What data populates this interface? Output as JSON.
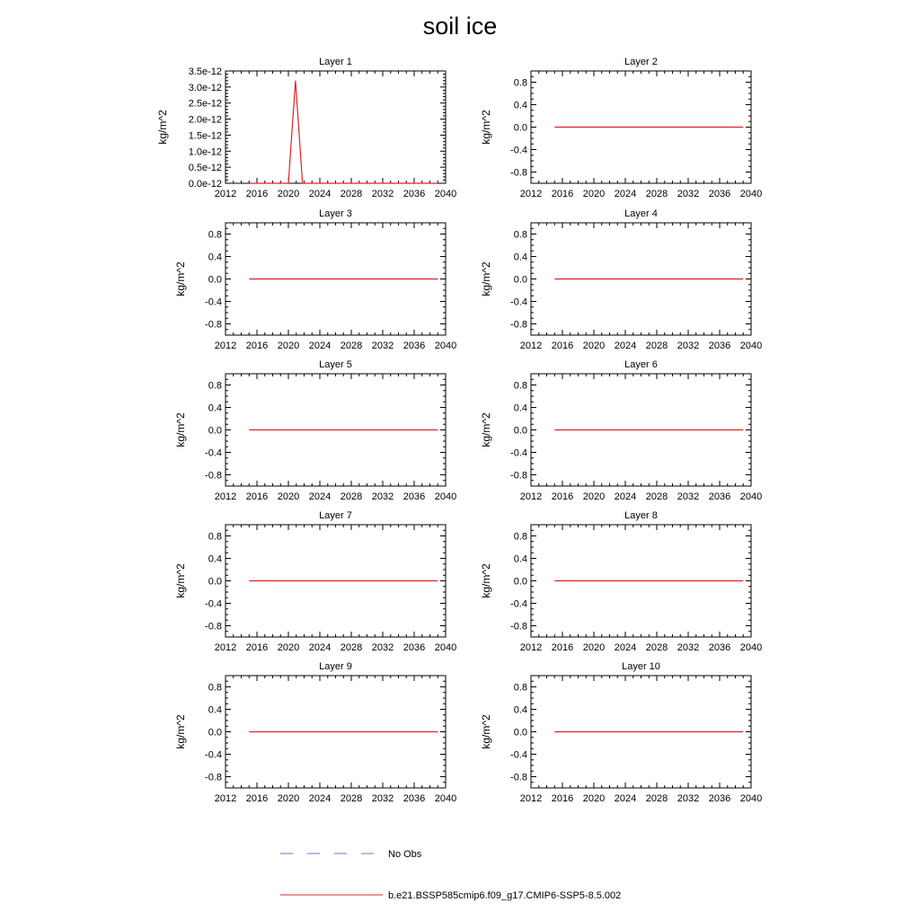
{
  "title": "soil ice",
  "legend": {
    "placement": "bottom",
    "entries": [
      {
        "label": "No Obs",
        "color": "#6f6fd8",
        "style": "dashed"
      },
      {
        "label": "b.e21.BSSP585cmip6.f09_g17.CMIP6-SSP5-8.5.002",
        "color": "#e62020",
        "style": "solid"
      }
    ]
  },
  "chart_data": [
    {
      "type": "line",
      "title": "Layer 1",
      "ylabel": "kg/m^2",
      "xlim": [
        2012,
        2040
      ],
      "xticks": [
        2012,
        2016,
        2020,
        2024,
        2028,
        2032,
        2036,
        2040
      ],
      "ylim": [
        0,
        3.5e-12
      ],
      "yticks": [
        0,
        5e-13,
        1e-12,
        1.5e-12,
        2e-12,
        2.5e-12,
        3e-12,
        3.5e-12
      ],
      "ytick_labels": [
        "0.0e-12",
        "0.5e-12",
        "1.0e-12",
        "1.5e-12",
        "2.0e-12",
        "2.5e-12",
        "3.0e-12",
        "3.5e-12"
      ],
      "series": [
        {
          "name": "b.e21.BSSP585cmip6.f09_g17.CMIP6-SSP5-8.5.002",
          "color": "#e62020",
          "x": [
            2015,
            2020,
            2020.9,
            2021.8,
            2039
          ],
          "y": [
            0,
            0,
            3.2e-12,
            0,
            0
          ]
        }
      ]
    },
    {
      "type": "line",
      "title": "Layer 2",
      "ylabel": "kg/m^2",
      "xlim": [
        2012,
        2040
      ],
      "xticks": [
        2012,
        2016,
        2020,
        2024,
        2028,
        2032,
        2036,
        2040
      ],
      "ylim": [
        -1,
        1
      ],
      "yticks": [
        -0.8,
        -0.4,
        0.0,
        0.4,
        0.8
      ],
      "ytick_labels": [
        "-0.8",
        "-0.4",
        "0.0",
        "0.4",
        "0.8"
      ],
      "series": [
        {
          "name": "b.e21.BSSP585cmip6.f09_g17.CMIP6-SSP5-8.5.002",
          "color": "#e62020",
          "x": [
            2015,
            2039
          ],
          "y": [
            0,
            0
          ]
        }
      ]
    },
    {
      "type": "line",
      "title": "Layer 3",
      "ylabel": "kg/m^2",
      "xlim": [
        2012,
        2040
      ],
      "xticks": [
        2012,
        2016,
        2020,
        2024,
        2028,
        2032,
        2036,
        2040
      ],
      "ylim": [
        -1,
        1
      ],
      "yticks": [
        -0.8,
        -0.4,
        0.0,
        0.4,
        0.8
      ],
      "ytick_labels": [
        "-0.8",
        "-0.4",
        "0.0",
        "0.4",
        "0.8"
      ],
      "series": [
        {
          "name": "b.e21.BSSP585cmip6.f09_g17.CMIP6-SSP5-8.5.002",
          "color": "#e62020",
          "x": [
            2015,
            2039
          ],
          "y": [
            0,
            0
          ]
        }
      ]
    },
    {
      "type": "line",
      "title": "Layer 4",
      "ylabel": "kg/m^2",
      "xlim": [
        2012,
        2040
      ],
      "xticks": [
        2012,
        2016,
        2020,
        2024,
        2028,
        2032,
        2036,
        2040
      ],
      "ylim": [
        -1,
        1
      ],
      "yticks": [
        -0.8,
        -0.4,
        0.0,
        0.4,
        0.8
      ],
      "ytick_labels": [
        "-0.8",
        "-0.4",
        "0.0",
        "0.4",
        "0.8"
      ],
      "series": [
        {
          "name": "b.e21.BSSP585cmip6.f09_g17.CMIP6-SSP5-8.5.002",
          "color": "#e62020",
          "x": [
            2015,
            2039
          ],
          "y": [
            0,
            0
          ]
        }
      ]
    },
    {
      "type": "line",
      "title": "Layer 5",
      "ylabel": "kg/m^2",
      "xlim": [
        2012,
        2040
      ],
      "xticks": [
        2012,
        2016,
        2020,
        2024,
        2028,
        2032,
        2036,
        2040
      ],
      "ylim": [
        -1,
        1
      ],
      "yticks": [
        -0.8,
        -0.4,
        0.0,
        0.4,
        0.8
      ],
      "ytick_labels": [
        "-0.8",
        "-0.4",
        "0.0",
        "0.4",
        "0.8"
      ],
      "series": [
        {
          "name": "b.e21.BSSP585cmip6.f09_g17.CMIP6-SSP5-8.5.002",
          "color": "#e62020",
          "x": [
            2015,
            2039
          ],
          "y": [
            0,
            0
          ]
        }
      ]
    },
    {
      "type": "line",
      "title": "Layer 6",
      "ylabel": "kg/m^2",
      "xlim": [
        2012,
        2040
      ],
      "xticks": [
        2012,
        2016,
        2020,
        2024,
        2028,
        2032,
        2036,
        2040
      ],
      "ylim": [
        -1,
        1
      ],
      "yticks": [
        -0.8,
        -0.4,
        0.0,
        0.4,
        0.8
      ],
      "ytick_labels": [
        "-0.8",
        "-0.4",
        "0.0",
        "0.4",
        "0.8"
      ],
      "series": [
        {
          "name": "b.e21.BSSP585cmip6.f09_g17.CMIP6-SSP5-8.5.002",
          "color": "#e62020",
          "x": [
            2015,
            2039
          ],
          "y": [
            0,
            0
          ]
        }
      ]
    },
    {
      "type": "line",
      "title": "Layer 7",
      "ylabel": "kg/m^2",
      "xlim": [
        2012,
        2040
      ],
      "xticks": [
        2012,
        2016,
        2020,
        2024,
        2028,
        2032,
        2036,
        2040
      ],
      "ylim": [
        -1,
        1
      ],
      "yticks": [
        -0.8,
        -0.4,
        0.0,
        0.4,
        0.8
      ],
      "ytick_labels": [
        "-0.8",
        "-0.4",
        "0.0",
        "0.4",
        "0.8"
      ],
      "series": [
        {
          "name": "b.e21.BSSP585cmip6.f09_g17.CMIP6-SSP5-8.5.002",
          "color": "#e62020",
          "x": [
            2015,
            2039
          ],
          "y": [
            0,
            0
          ]
        }
      ]
    },
    {
      "type": "line",
      "title": "Layer 8",
      "ylabel": "kg/m^2",
      "xlim": [
        2012,
        2040
      ],
      "xticks": [
        2012,
        2016,
        2020,
        2024,
        2028,
        2032,
        2036,
        2040
      ],
      "ylim": [
        -1,
        1
      ],
      "yticks": [
        -0.8,
        -0.4,
        0.0,
        0.4,
        0.8
      ],
      "ytick_labels": [
        "-0.8",
        "-0.4",
        "0.0",
        "0.4",
        "0.8"
      ],
      "series": [
        {
          "name": "b.e21.BSSP585cmip6.f09_g17.CMIP6-SSP5-8.5.002",
          "color": "#e62020",
          "x": [
            2015,
            2039
          ],
          "y": [
            0,
            0
          ]
        }
      ]
    },
    {
      "type": "line",
      "title": "Layer 9",
      "ylabel": "kg/m^2",
      "xlim": [
        2012,
        2040
      ],
      "xticks": [
        2012,
        2016,
        2020,
        2024,
        2028,
        2032,
        2036,
        2040
      ],
      "ylim": [
        -1,
        1
      ],
      "yticks": [
        -0.8,
        -0.4,
        0.0,
        0.4,
        0.8
      ],
      "ytick_labels": [
        "-0.8",
        "-0.4",
        "0.0",
        "0.4",
        "0.8"
      ],
      "series": [
        {
          "name": "b.e21.BSSP585cmip6.f09_g17.CMIP6-SSP5-8.5.002",
          "color": "#e62020",
          "x": [
            2015,
            2039
          ],
          "y": [
            0,
            0
          ]
        }
      ]
    },
    {
      "type": "line",
      "title": "Layer 10",
      "ylabel": "kg/m^2",
      "xlim": [
        2012,
        2040
      ],
      "xticks": [
        2012,
        2016,
        2020,
        2024,
        2028,
        2032,
        2036,
        2040
      ],
      "ylim": [
        -1,
        1
      ],
      "yticks": [
        -0.8,
        -0.4,
        0.0,
        0.4,
        0.8
      ],
      "ytick_labels": [
        "-0.8",
        "-0.4",
        "0.0",
        "0.4",
        "0.8"
      ],
      "series": [
        {
          "name": "b.e21.BSSP585cmip6.f09_g17.CMIP6-SSP5-8.5.002",
          "color": "#e62020",
          "x": [
            2015,
            2039
          ],
          "y": [
            0,
            0
          ]
        }
      ]
    }
  ]
}
